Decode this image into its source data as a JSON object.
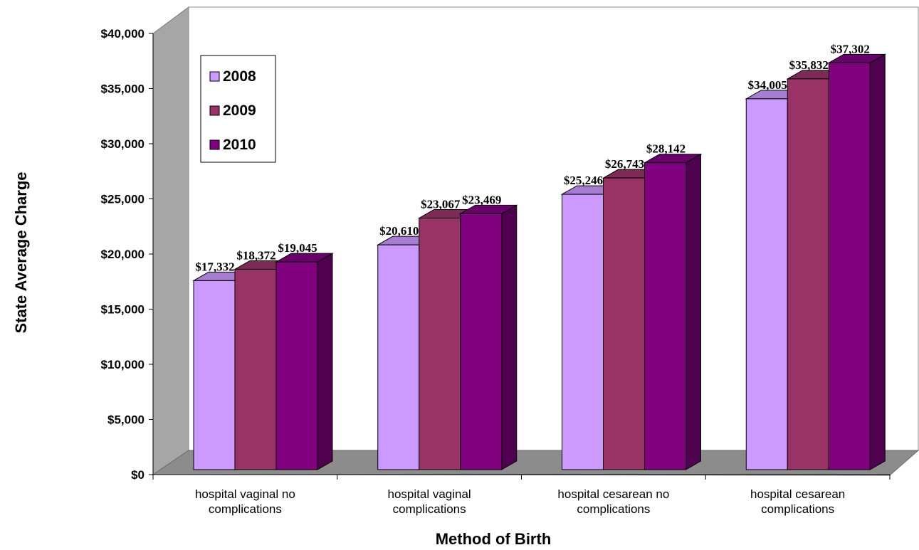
{
  "chart_data": {
    "type": "bar",
    "xlabel": "Method of Birth",
    "ylabel": "State Average Charge",
    "ylim": [
      0,
      40000
    ],
    "y_ticks": [
      "$0",
      "$5,000",
      "$10,000",
      "$15,000",
      "$20,000",
      "$25,000",
      "$30,000",
      "$35,000",
      "$40,000"
    ],
    "categories": [
      [
        "hospital vaginal no",
        "complications"
      ],
      [
        "hospital vaginal",
        "complications"
      ],
      [
        "hospital cesarean no",
        "complications"
      ],
      [
        "hospital cesarean",
        "complications"
      ]
    ],
    "series": [
      {
        "name": "2008",
        "color": "#CC99FF",
        "values": [
          17332,
          20610,
          25246,
          34005
        ],
        "labels": [
          "$17,332",
          "$20,610",
          "$25,246",
          "$34,005"
        ]
      },
      {
        "name": "2009",
        "color": "#993366",
        "values": [
          18372,
          23067,
          26743,
          35832
        ],
        "labels": [
          "$18,372",
          "$23,067",
          "$26,743",
          "$35,832"
        ]
      },
      {
        "name": "2010",
        "color": "#800080",
        "values": [
          19045,
          23469,
          28142,
          37302
        ],
        "labels": [
          "$19,045",
          "$23,469",
          "$28,142",
          "$37,302"
        ]
      }
    ],
    "legend_position": "top-left",
    "grid": false,
    "three_d": true
  }
}
